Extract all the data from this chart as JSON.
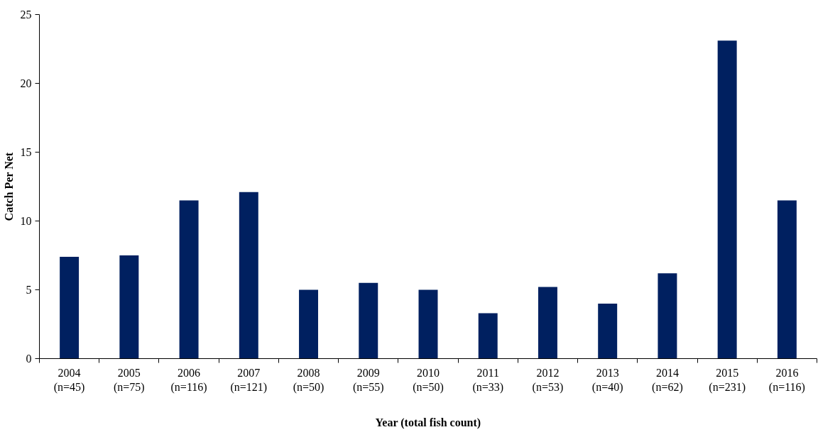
{
  "chart_data": {
    "type": "bar",
    "xlabel": "Year (total fish count)",
    "ylabel": "Catch Per Net",
    "categories": [
      "2004\n(n=45)",
      "2005\n(n=75)",
      "2006\n(n=116)",
      "2007\n(n=121)",
      "2008\n(n=50)",
      "2009\n(n=55)",
      "2010\n(n=50)",
      "2011\n(n=33)",
      "2012\n(n=53)",
      "2013\n(n=40)",
      "2014\n(n=62)",
      "2015\n(n=231)",
      "2016\n(n=116)"
    ],
    "values": [
      7.4,
      7.5,
      11.5,
      12.1,
      5.0,
      5.5,
      5.0,
      3.3,
      5.2,
      4.0,
      6.2,
      23.1,
      11.5
    ],
    "color": "#002060",
    "ylim": [
      0,
      25
    ],
    "yticks": [
      0,
      5,
      10,
      15,
      20,
      25
    ],
    "grid": false
  }
}
